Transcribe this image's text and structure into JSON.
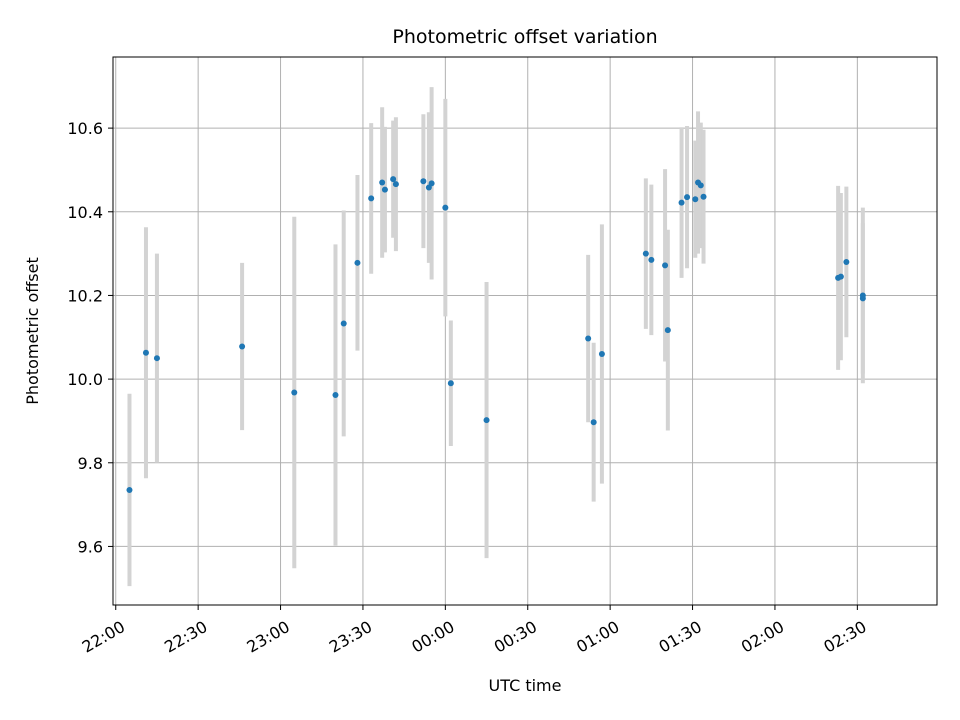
{
  "chart_data": {
    "type": "scatter",
    "title": "Photometric offset variation",
    "xlabel": "UTC time",
    "ylabel": "Photometric offset",
    "x_tick_labels": [
      "22:00",
      "22:30",
      "23:00",
      "23:30",
      "00:00",
      "00:30",
      "01:00",
      "01:30",
      "02:00",
      "02:30"
    ],
    "y_tick_labels": [
      "9.6",
      "9.8",
      "10.0",
      "10.2",
      "10.4",
      "10.6"
    ],
    "y_ticks": [
      9.6,
      9.8,
      10.0,
      10.2,
      10.4,
      10.6
    ],
    "xlim": [
      "21:59",
      "02:59"
    ],
    "ylim": [
      9.46,
      10.77
    ],
    "grid": true,
    "colors": {
      "point": "#1f77b4",
      "errorbar": "#d3d3d3",
      "grid": "#b0b0b0"
    },
    "points": [
      {
        "t": "22:05",
        "y": 9.735,
        "err": 0.23
      },
      {
        "t": "22:11",
        "y": 10.063,
        "err": 0.3
      },
      {
        "t": "22:15",
        "y": 10.05,
        "err": 0.25
      },
      {
        "t": "22:46",
        "y": 10.078,
        "err": 0.2
      },
      {
        "t": "23:05",
        "y": 9.968,
        "err": 0.42
      },
      {
        "t": "23:20",
        "y": 9.962,
        "err": 0.36
      },
      {
        "t": "23:23",
        "y": 10.133,
        "err": 0.27
      },
      {
        "t": "23:28",
        "y": 10.278,
        "err": 0.21
      },
      {
        "t": "23:33",
        "y": 10.432,
        "err": 0.18
      },
      {
        "t": "23:37",
        "y": 10.47,
        "err": 0.18
      },
      {
        "t": "23:38",
        "y": 10.453,
        "err": 0.15
      },
      {
        "t": "23:41",
        "y": 10.478,
        "err": 0.14
      },
      {
        "t": "23:42",
        "y": 10.466,
        "err": 0.16
      },
      {
        "t": "23:52",
        "y": 10.473,
        "err": 0.16
      },
      {
        "t": "23:54",
        "y": 10.458,
        "err": 0.18
      },
      {
        "t": "23:55",
        "y": 10.468,
        "err": 0.23
      },
      {
        "t": "00:00",
        "y": 10.41,
        "err": 0.26
      },
      {
        "t": "00:02",
        "y": 9.99,
        "err": 0.15
      },
      {
        "t": "00:15",
        "y": 9.902,
        "err": 0.33
      },
      {
        "t": "00:52",
        "y": 10.097,
        "err": 0.2
      },
      {
        "t": "00:54",
        "y": 9.897,
        "err": 0.19
      },
      {
        "t": "00:57",
        "y": 10.06,
        "err": 0.31
      },
      {
        "t": "01:13",
        "y": 10.3,
        "err": 0.18
      },
      {
        "t": "01:15",
        "y": 10.285,
        "err": 0.18
      },
      {
        "t": "01:20",
        "y": 10.272,
        "err": 0.23
      },
      {
        "t": "01:21",
        "y": 10.117,
        "err": 0.24
      },
      {
        "t": "01:26",
        "y": 10.422,
        "err": 0.18
      },
      {
        "t": "01:28",
        "y": 10.435,
        "err": 0.17
      },
      {
        "t": "01:31",
        "y": 10.43,
        "err": 0.14
      },
      {
        "t": "01:32",
        "y": 10.47,
        "err": 0.17
      },
      {
        "t": "01:33",
        "y": 10.463,
        "err": 0.15
      },
      {
        "t": "01:34",
        "y": 10.436,
        "err": 0.16
      },
      {
        "t": "02:23",
        "y": 10.242,
        "err": 0.22
      },
      {
        "t": "02:24",
        "y": 10.245,
        "err": 0.2
      },
      {
        "t": "02:26",
        "y": 10.28,
        "err": 0.18
      },
      {
        "t": "02:32",
        "y": 10.2,
        "err": 0.21
      },
      {
        "t": "02:32",
        "y": 10.193,
        "err": 0.18
      }
    ]
  }
}
